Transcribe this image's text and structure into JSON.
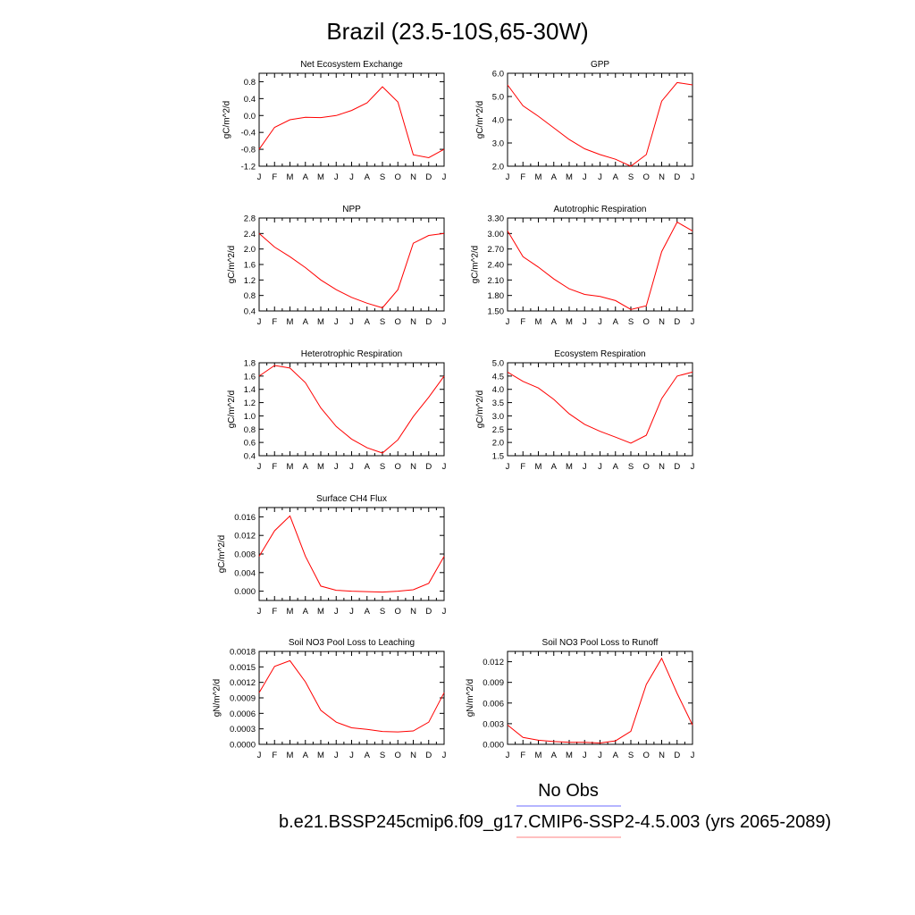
{
  "page": {
    "title": "Brazil (23.5-10S,65-30W)",
    "legend_obs": "No Obs",
    "legend_model": "b.e21.BSSP245cmip6.f09_g17.CMIP6-SSP2-4.5.003 (yrs 2065-2089)",
    "colors": {
      "model_line": "#ff0000",
      "obs_line": "#6b6bff",
      "model_legend_line": "#ff8080"
    }
  },
  "chart_data": [
    {
      "type": "line",
      "title": "Net Ecosystem Exchange",
      "ylabel": "gC/m^2/d",
      "x": [
        "J",
        "F",
        "M",
        "A",
        "M",
        "J",
        "J",
        "A",
        "S",
        "O",
        "N",
        "D",
        "J"
      ],
      "ylim": [
        -1.2,
        1.0
      ],
      "yticks": [
        "0.8",
        "0.4",
        "0.0",
        "-0.4",
        "-0.8",
        "-1.2"
      ],
      "ytick_values": [
        0.8,
        0.4,
        0.0,
        -0.4,
        -0.8,
        -1.2
      ],
      "values": [
        -0.8,
        -0.28,
        -0.1,
        -0.04,
        -0.05,
        0.0,
        0.12,
        0.3,
        0.68,
        0.32,
        -0.93,
        -1.0,
        -0.8
      ]
    },
    {
      "type": "line",
      "title": "GPP",
      "ylabel": "gC/m^2/d",
      "x": [
        "J",
        "F",
        "M",
        "A",
        "M",
        "J",
        "J",
        "A",
        "S",
        "O",
        "N",
        "D",
        "J"
      ],
      "ylim": [
        2.0,
        6.0
      ],
      "yticks": [
        "6.0",
        "5.0",
        "4.0",
        "3.0",
        "2.0"
      ],
      "ytick_values": [
        6.0,
        5.0,
        4.0,
        3.0,
        2.0
      ],
      "values": [
        5.5,
        4.6,
        4.15,
        3.65,
        3.15,
        2.75,
        2.5,
        2.3,
        2.0,
        2.5,
        4.8,
        5.6,
        5.5
      ]
    },
    {
      "type": "line",
      "title": "NPP",
      "ylabel": "gC/m^2/d",
      "x": [
        "J",
        "F",
        "M",
        "A",
        "M",
        "J",
        "J",
        "A",
        "S",
        "O",
        "N",
        "D",
        "J"
      ],
      "ylim": [
        0.4,
        2.8
      ],
      "yticks": [
        "2.8",
        "2.4",
        "2.0",
        "1.6",
        "1.2",
        "0.8",
        "0.4"
      ],
      "ytick_values": [
        2.8,
        2.4,
        2.0,
        1.6,
        1.2,
        0.8,
        0.4
      ],
      "values": [
        2.4,
        2.05,
        1.8,
        1.52,
        1.2,
        0.95,
        0.75,
        0.6,
        0.48,
        0.95,
        2.15,
        2.35,
        2.4
      ]
    },
    {
      "type": "line",
      "title": "Autotrophic Respiration",
      "ylabel": "gC/m^2/d",
      "x": [
        "J",
        "F",
        "M",
        "A",
        "M",
        "J",
        "J",
        "A",
        "S",
        "O",
        "N",
        "D",
        "J"
      ],
      "ylim": [
        1.5,
        3.3
      ],
      "yticks": [
        "3.30",
        "3.00",
        "2.70",
        "2.40",
        "2.10",
        "1.80",
        "1.50"
      ],
      "ytick_values": [
        3.3,
        3.0,
        2.7,
        2.4,
        2.1,
        1.8,
        1.5
      ],
      "values": [
        3.05,
        2.55,
        2.35,
        2.12,
        1.93,
        1.82,
        1.78,
        1.7,
        1.53,
        1.6,
        2.65,
        3.22,
        3.05
      ]
    },
    {
      "type": "line",
      "title": "Heterotrophic Respiration",
      "ylabel": "gC/m^2/d",
      "x": [
        "J",
        "F",
        "M",
        "A",
        "M",
        "J",
        "J",
        "A",
        "S",
        "O",
        "N",
        "D",
        "J"
      ],
      "ylim": [
        0.4,
        1.8
      ],
      "yticks": [
        "1.8",
        "1.6",
        "1.4",
        "1.2",
        "1.0",
        "0.8",
        "0.6",
        "0.4"
      ],
      "ytick_values": [
        1.8,
        1.6,
        1.4,
        1.2,
        1.0,
        0.8,
        0.6,
        0.4
      ],
      "values": [
        1.6,
        1.76,
        1.72,
        1.5,
        1.12,
        0.84,
        0.65,
        0.52,
        0.44,
        0.64,
        0.99,
        1.28,
        1.6
      ]
    },
    {
      "type": "line",
      "title": "Ecosystem Respiration",
      "ylabel": "gC/m^2/d",
      "x": [
        "J",
        "F",
        "M",
        "A",
        "M",
        "J",
        "J",
        "A",
        "S",
        "O",
        "N",
        "D",
        "J"
      ],
      "ylim": [
        1.5,
        5.0
      ],
      "yticks": [
        "5.0",
        "4.5",
        "4.0",
        "3.5",
        "3.0",
        "2.5",
        "2.0",
        "1.5"
      ],
      "ytick_values": [
        5.0,
        4.5,
        4.0,
        3.5,
        3.0,
        2.5,
        2.0,
        1.5
      ],
      "values": [
        4.65,
        4.3,
        4.05,
        3.62,
        3.08,
        2.68,
        2.42,
        2.2,
        1.97,
        2.27,
        3.65,
        4.5,
        4.65
      ]
    },
    {
      "type": "line",
      "title": "Surface CH4 Flux",
      "ylabel": "gC/m^2/d",
      "x": [
        "J",
        "F",
        "M",
        "A",
        "M",
        "J",
        "J",
        "A",
        "S",
        "O",
        "N",
        "D",
        "J"
      ],
      "ylim": [
        -0.002,
        0.018
      ],
      "yticks": [
        "0.016",
        "0.012",
        "0.008",
        "0.004",
        "0.000"
      ],
      "ytick_values": [
        0.016,
        0.012,
        0.008,
        0.004,
        0.0
      ],
      "values": [
        0.0075,
        0.013,
        0.0162,
        0.0075,
        0.0011,
        0.0002,
        0.0,
        -0.0001,
        -0.0002,
        0.0,
        0.0003,
        0.0017,
        0.0075
      ]
    },
    {
      "type": "line",
      "title": "Soil NO3 Pool Loss to Leaching",
      "ylabel": "gN/m^2/d",
      "x": [
        "J",
        "F",
        "M",
        "A",
        "M",
        "J",
        "J",
        "A",
        "S",
        "O",
        "N",
        "D",
        "J"
      ],
      "ylim": [
        0.0,
        0.0018
      ],
      "yticks": [
        "0.0018",
        "0.0015",
        "0.0012",
        "0.0009",
        "0.0006",
        "0.0003",
        "0.0000"
      ],
      "ytick_values": [
        0.0018,
        0.0015,
        0.0012,
        0.0009,
        0.0006,
        0.0003,
        0.0
      ],
      "values": [
        0.001,
        0.00151,
        0.00162,
        0.00121,
        0.00066,
        0.00043,
        0.00032,
        0.00029,
        0.00025,
        0.00024,
        0.00026,
        0.00043,
        0.001
      ]
    },
    {
      "type": "line",
      "title": "Soil NO3 Pool Loss to Runoff",
      "ylabel": "gN/m^2/d",
      "x": [
        "J",
        "F",
        "M",
        "A",
        "M",
        "J",
        "J",
        "A",
        "S",
        "O",
        "N",
        "D",
        "J"
      ],
      "ylim": [
        0.0,
        0.0135
      ],
      "yticks": [
        "0.012",
        "0.009",
        "0.006",
        "0.003",
        "0.000"
      ],
      "ytick_values": [
        0.012,
        0.009,
        0.006,
        0.003,
        0.0
      ],
      "values": [
        0.0028,
        0.001,
        0.0006,
        0.0004,
        0.0003,
        0.0003,
        0.0002,
        0.0005,
        0.0019,
        0.0087,
        0.0125,
        0.0074,
        0.0028
      ]
    }
  ]
}
